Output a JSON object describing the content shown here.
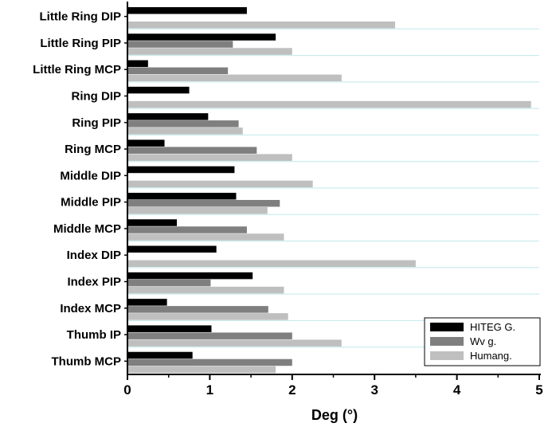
{
  "chart_data": {
    "type": "bar",
    "orientation": "horizontal",
    "title": "",
    "xlabel": "Deg (°)",
    "ylabel": "",
    "xlim": [
      0,
      5
    ],
    "xticks": [
      "0",
      "1",
      "2",
      "3",
      "4",
      "5"
    ],
    "grid": "horizontal",
    "legend_position": "bottom-right",
    "categories": [
      "Little Ring DIP",
      "Little Ring PIP",
      "Little Ring MCP",
      "Ring DIP",
      "Ring PIP",
      "Ring MCP",
      "Middle DIP",
      "Middle PIP",
      "Middle MCP",
      "Index DIP",
      "Index PIP",
      "Index MCP",
      "Thumb IP",
      "Thumb MCP"
    ],
    "series": [
      {
        "name": "HITEG G.",
        "color": "#000000",
        "values": [
          1.45,
          1.8,
          0.25,
          0.75,
          0.98,
          0.45,
          1.3,
          1.32,
          0.6,
          1.08,
          1.52,
          0.48,
          1.02,
          0.79
        ]
      },
      {
        "name": "Wv g.",
        "color": "#7f7f7f",
        "values": [
          null,
          1.28,
          1.22,
          null,
          1.35,
          1.57,
          null,
          1.85,
          1.45,
          null,
          1.01,
          1.71,
          2.0,
          2.0
        ]
      },
      {
        "name": "Humang.",
        "color": "#bfbfbf",
        "values": [
          3.25,
          2.0,
          2.6,
          4.9,
          1.4,
          2.0,
          2.25,
          1.7,
          1.9,
          3.5,
          1.9,
          1.95,
          2.6,
          1.8
        ]
      }
    ]
  }
}
